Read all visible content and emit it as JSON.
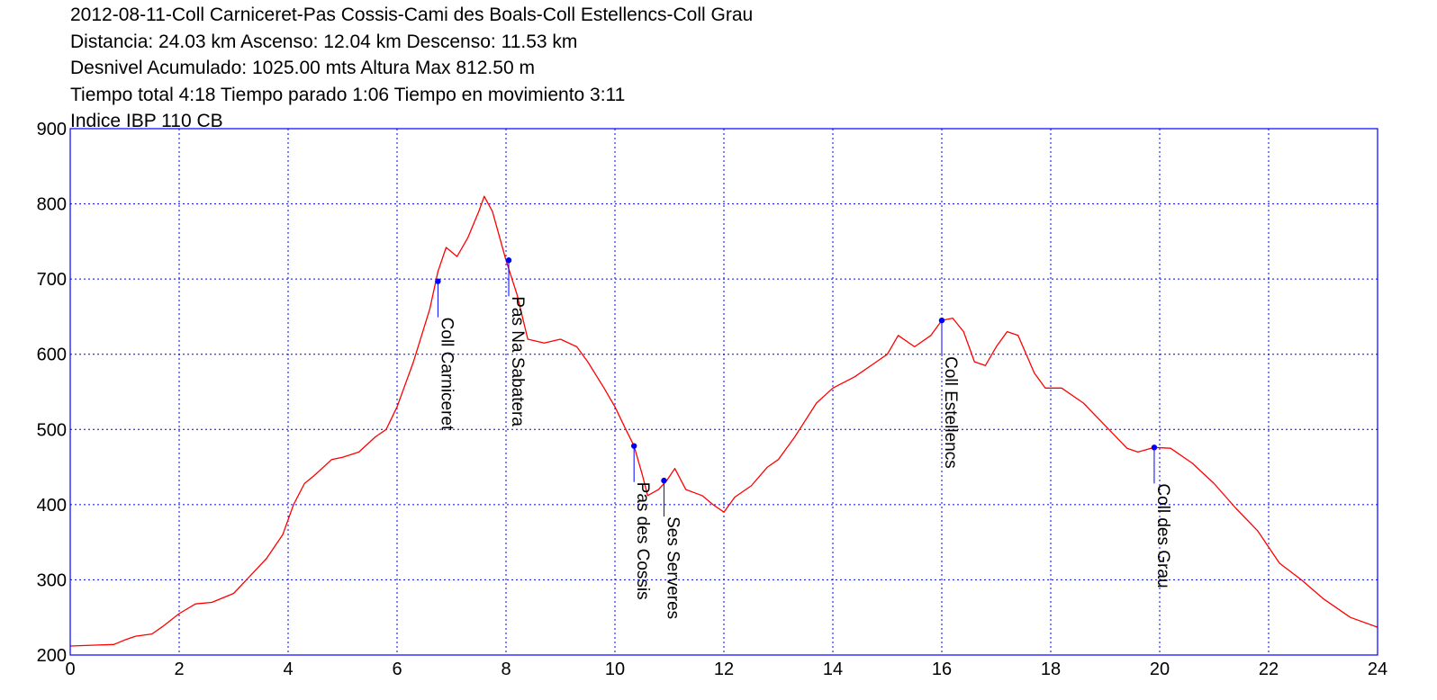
{
  "header": {
    "lines": [
      "2012-08-11-Coll Carniceret-Pas Cossis-Cami des Boals-Coll Estellencs-Coll Grau",
      "Distancia: 24.03 km Ascenso: 12.04 km Descenso: 11.53 km",
      "Desnivel Acumulado: 1025.00 mts  Altura Max 812.50 m",
      "Tiempo total 4:18 Tiempo parado 1:06 Tiempo en movimiento 3:11",
      "Indice IBP 110 CB"
    ]
  },
  "colors": {
    "profile": "#ff0000",
    "axis_frame": "#0000ff",
    "grid": "#0000ff",
    "waypoint_marker": "#0000ff",
    "waypoint_leader": "#0000ff",
    "text": "#000000"
  },
  "chart_data": {
    "type": "line",
    "x_unit": "km",
    "y_unit": "m",
    "xlim": [
      0,
      24
    ],
    "ylim": [
      200,
      900
    ],
    "x_ticks": [
      0,
      2,
      4,
      6,
      8,
      10,
      12,
      14,
      16,
      18,
      20,
      22,
      24
    ],
    "y_ticks": [
      200,
      300,
      400,
      500,
      600,
      700,
      800,
      900
    ],
    "grid": true,
    "grid_style": "dotted",
    "legend": "none",
    "series": [
      {
        "x": [
          0,
          0.4,
          0.8,
          1.0,
          1.2,
          1.5,
          1.7,
          2.0,
          2.3,
          2.6,
          3.0,
          3.3,
          3.6,
          3.9,
          4.1,
          4.3,
          4.5,
          4.8,
          5.0,
          5.3,
          5.6,
          5.8,
          6.0,
          6.3,
          6.6,
          6.75,
          6.9,
          7.1,
          7.3,
          7.5,
          7.6,
          7.75,
          8.0,
          8.2,
          8.4,
          8.7,
          9.0,
          9.3,
          9.5,
          9.8,
          10.0,
          10.2,
          10.35,
          10.5,
          10.6,
          10.8,
          10.95,
          11.1,
          11.3,
          11.6,
          11.8,
          12.0,
          12.2,
          12.5,
          12.8,
          13.0,
          13.3,
          13.7,
          14.0,
          14.4,
          14.8,
          15.0,
          15.2,
          15.5,
          15.8,
          16.0,
          16.2,
          16.4,
          16.6,
          16.8,
          17.0,
          17.2,
          17.4,
          17.7,
          17.9,
          18.2,
          18.6,
          19.0,
          19.4,
          19.6,
          19.9,
          20.2,
          20.6,
          21.0,
          21.4,
          21.8,
          22.2,
          22.6,
          23.0,
          23.5,
          24.0
        ],
        "y": [
          212,
          213,
          214,
          220,
          225,
          228,
          238,
          255,
          268,
          270,
          282,
          305,
          328,
          360,
          400,
          428,
          440,
          460,
          463,
          470,
          490,
          500,
          530,
          590,
          660,
          710,
          742,
          730,
          755,
          790,
          810,
          790,
          725,
          680,
          620,
          615,
          620,
          610,
          590,
          555,
          530,
          500,
          478,
          440,
          412,
          420,
          432,
          448,
          420,
          412,
          400,
          390,
          410,
          425,
          450,
          460,
          490,
          535,
          555,
          570,
          590,
          600,
          625,
          610,
          625,
          645,
          648,
          630,
          590,
          585,
          610,
          630,
          625,
          575,
          555,
          555,
          535,
          505,
          475,
          470,
          476,
          475,
          455,
          428,
          395,
          365,
          322,
          300,
          275,
          250,
          237
        ]
      }
    ],
    "waypoints": [
      {
        "name": "Coll Carniceret",
        "x": 6.75,
        "y": 697
      },
      {
        "name": "Pas Na Sabatera",
        "x": 8.05,
        "y": 725
      },
      {
        "name": "Pas des Cossis",
        "x": 10.35,
        "y": 478
      },
      {
        "name": "Ses Serveres",
        "x": 10.9,
        "y": 432
      },
      {
        "name": "Coll Estellencs",
        "x": 16.0,
        "y": 645
      },
      {
        "name": "Coll des Grau",
        "x": 19.9,
        "y": 476
      }
    ]
  }
}
